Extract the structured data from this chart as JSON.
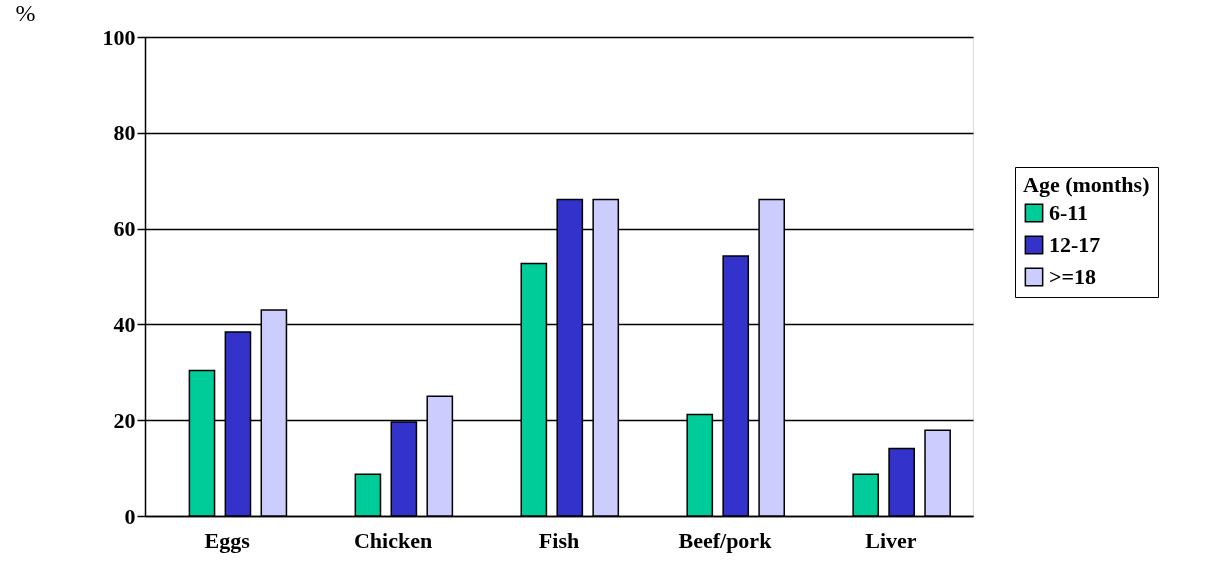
{
  "chart_data": {
    "type": "bar",
    "ylabel": "%",
    "legend_title": "Age (months)",
    "categories": [
      "Eggs",
      "Chicken",
      "Fish",
      "Beef/pork",
      "Liver"
    ],
    "series": [
      {
        "name": "6-11",
        "color": "#00cc99",
        "values": [
          30.4,
          8.7,
          52.7,
          21.2,
          8.7
        ]
      },
      {
        "name": "12-17",
        "color": "#3333cc",
        "values": [
          38.4,
          19.6,
          66.1,
          54.3,
          14.1
        ]
      },
      {
        "name": ">=18",
        "color": "#ccccff",
        "values": [
          43.0,
          25.0,
          66.1,
          66.1,
          17.9
        ]
      }
    ],
    "ylim": [
      0,
      100
    ],
    "yticks": [
      0,
      20,
      40,
      60,
      80,
      100
    ],
    "grid": "y",
    "legend": "right"
  }
}
